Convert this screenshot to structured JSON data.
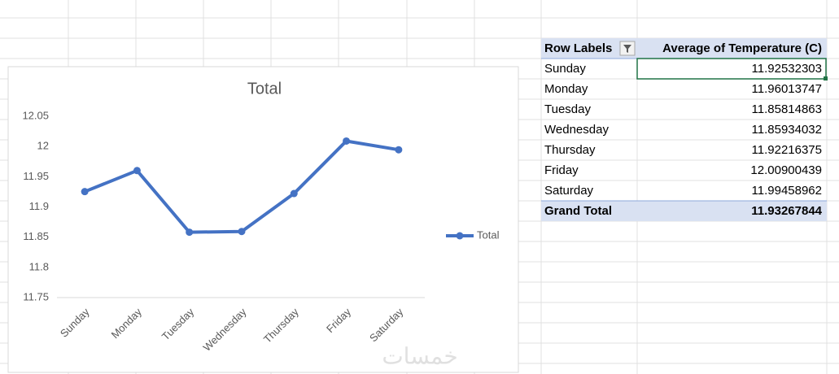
{
  "chart_data": {
    "type": "line",
    "title": "Total",
    "categories": [
      "Sunday",
      "Monday",
      "Tuesday",
      "Wednesday",
      "Thursday",
      "Friday",
      "Saturday"
    ],
    "series": [
      {
        "name": "Total",
        "color": "#4472c4",
        "values": [
          11.92532303,
          11.96013747,
          11.85814863,
          11.85934032,
          11.92216375,
          12.00900439,
          11.99458962
        ]
      }
    ],
    "ylim": [
      11.75,
      12.05
    ],
    "yticks": [
      11.75,
      11.8,
      11.85,
      11.9,
      11.95,
      12,
      12.05
    ],
    "grid": false,
    "legend": "right"
  },
  "pivot_table": {
    "headers": [
      "Row Labels",
      "Average of Temperature (C)"
    ],
    "rows": [
      [
        "Sunday",
        11.92532303
      ],
      [
        "Monday",
        11.96013747
      ],
      [
        "Tuesday",
        11.85814863
      ],
      [
        "Wednesday",
        11.85934032
      ],
      [
        "Thursday",
        11.92216375
      ],
      [
        "Friday",
        12.00900439
      ],
      [
        "Saturday",
        11.99458962
      ]
    ],
    "grand_total": [
      "Grand Total",
      11.93267844
    ]
  },
  "watermark": "خمسات"
}
